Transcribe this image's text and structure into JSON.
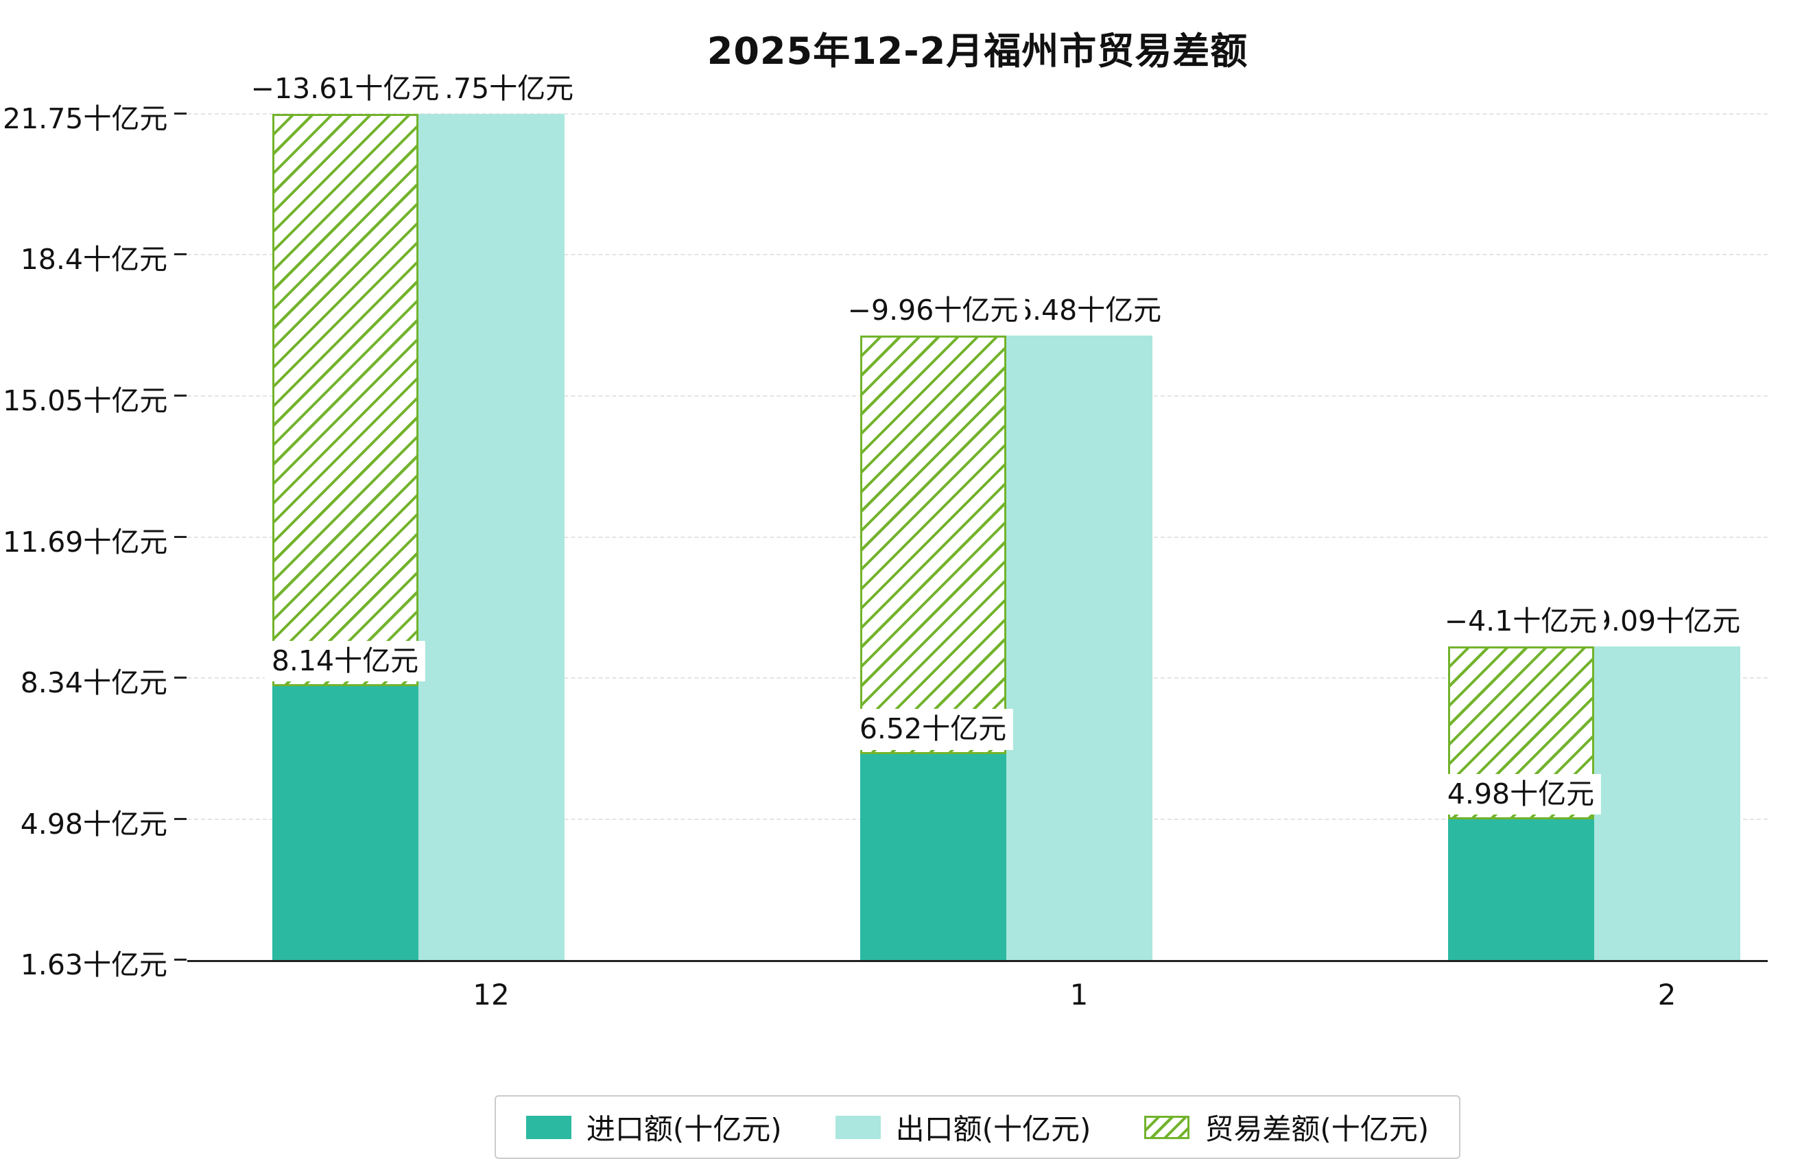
{
  "title": "2025年12-2月福州市贸易差额",
  "chart_data": {
    "type": "bar",
    "title": "2025年12-2月福州市贸易差额",
    "categories": [
      "12",
      "1",
      "2"
    ],
    "unit": "十亿元",
    "series": [
      {
        "name": "进口额(十亿元)",
        "role": "import",
        "values": [
          8.14,
          6.52,
          4.98
        ],
        "color": "#2cb9a2",
        "bar_labels": [
          "8.14十亿元",
          "6.52十亿元",
          "4.98十亿元"
        ]
      },
      {
        "name": "出口额(十亿元)",
        "role": "export",
        "values": [
          21.75,
          16.48,
          9.09
        ],
        "color": "#abe7de",
        "bar_labels": [
          "21.75十亿元",
          "16.48十亿元",
          "9.09十亿元"
        ]
      },
      {
        "name": "贸易差额(十亿元)",
        "role": "balance",
        "values": [
          -13.61,
          -9.96,
          -4.1
        ],
        "color": "#ffffff",
        "hatch": "/",
        "hatch_color": "#72b32c",
        "bar_labels": [
          "−13.61十亿元",
          "−9.96十亿元",
          "−4.1十亿元"
        ]
      }
    ],
    "yticks": [
      {
        "value": 21.75,
        "label": "21.75十亿元"
      },
      {
        "value": 18.4,
        "label": "18.4十亿元"
      },
      {
        "value": 15.05,
        "label": "15.05十亿元"
      },
      {
        "value": 11.69,
        "label": "11.69十亿元"
      },
      {
        "value": 8.34,
        "label": "8.34十亿元"
      },
      {
        "value": 4.98,
        "label": "4.98十亿元"
      },
      {
        "value": 1.63,
        "label": "1.63十亿元"
      }
    ],
    "ylim": [
      1.63,
      21.75
    ],
    "grid": true,
    "legend_position": "bottom",
    "note": "balance bars drawn stacked on top of import bars up to export level"
  },
  "legend": {
    "items": [
      "进口额(十亿元)",
      "出口额(十亿元)",
      "贸易差额(十亿元)"
    ]
  }
}
